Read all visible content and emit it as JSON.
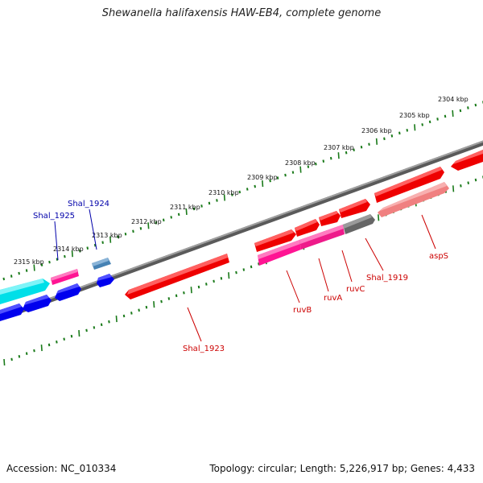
{
  "title": "Shewanella halifaxensis HAW-EB4, complete genome",
  "accession_text": "Accession: NC_010334",
  "summary_text": "Topology: circular; Length: 5,226,917 bp; Genes: 4,433",
  "colors": {
    "backbone": "#808080",
    "tick": "#1a7a1a",
    "red_gene": "#ff0000",
    "magenta_gene": "#ff1493",
    "pink_gene": "#f08080",
    "gray_gene": "#606060",
    "cyan_gene": "#00e5ee",
    "blue_gene": "#0000ee",
    "steelblue_gene": "#4682b4",
    "label_red": "#cc0000",
    "label_blue": "#0000aa"
  },
  "ticks": [
    {
      "label": "2304 kbp"
    },
    {
      "label": "2305 kbp"
    },
    {
      "label": "2306 kbp"
    },
    {
      "label": "2307 kbp"
    },
    {
      "label": "2308 kbp"
    },
    {
      "label": "2309 kbp"
    },
    {
      "label": "2310 kbp"
    },
    {
      "label": "2311 kbp"
    },
    {
      "label": "2312 kbp"
    },
    {
      "label": "2313 kbp"
    },
    {
      "label": "2314 kbp"
    },
    {
      "label": "2315 kbp"
    }
  ],
  "gene_labels": [
    {
      "name": "Shal_1925",
      "color": "blue"
    },
    {
      "name": "Shal_1924",
      "color": "blue"
    },
    {
      "name": "Shal_1923",
      "color": "red"
    },
    {
      "name": "ruvB",
      "color": "red"
    },
    {
      "name": "ruvA",
      "color": "red"
    },
    {
      "name": "ruvC",
      "color": "red"
    },
    {
      "name": "Shal_1919",
      "color": "red"
    },
    {
      "name": "aspS",
      "color": "red"
    }
  ]
}
